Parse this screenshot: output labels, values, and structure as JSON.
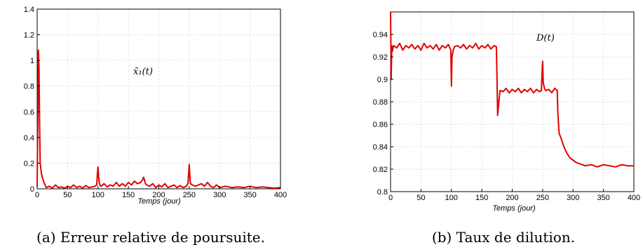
{
  "chart_data": [
    {
      "type": "line",
      "panel": "(a)",
      "caption": "(a) Erreur relative de poursuite.",
      "annotation": "x̃₁(t)",
      "xlabel": "Temps (jour)",
      "ylabel": "",
      "xlim": [
        0,
        400
      ],
      "ylim": [
        0,
        1.4
      ],
      "xticks": [
        "0",
        "50",
        "100",
        "150",
        "200",
        "250",
        "300",
        "350",
        "400"
      ],
      "yticks": [
        "0",
        "0.2",
        "0.4",
        "0.6",
        "0.8",
        "1",
        "1.2",
        "1.4"
      ],
      "grid": true,
      "series_color": "#e00000",
      "series": [
        {
          "x": [
            0,
            1,
            2,
            3,
            4,
            5,
            7,
            9,
            12,
            15,
            20,
            25,
            30,
            35,
            40,
            45,
            50,
            55,
            60,
            65,
            70,
            75,
            80,
            85,
            90,
            95,
            98,
            99,
            100,
            101,
            102,
            103,
            105,
            110,
            115,
            120,
            125,
            130,
            135,
            140,
            145,
            150,
            155,
            160,
            165,
            170,
            173,
            175,
            177,
            178,
            180,
            185,
            190,
            195,
            200,
            205,
            210,
            215,
            220,
            225,
            230,
            235,
            240,
            245,
            248,
            249,
            250,
            251,
            252,
            255,
            260,
            265,
            270,
            275,
            280,
            285,
            290,
            295,
            300,
            310,
            320,
            330,
            340,
            350,
            360,
            370,
            380,
            390,
            400
          ],
          "y": [
            0.02,
            0.5,
            1.08,
            0.95,
            0.5,
            0.2,
            0.12,
            0.08,
            0.04,
            0.01,
            0.02,
            0.005,
            0.03,
            0.01,
            0.015,
            0.005,
            0.02,
            0.01,
            0.03,
            0.01,
            0.02,
            0.005,
            0.025,
            0.01,
            0.015,
            0.02,
            0.03,
            0.12,
            0.17,
            0.1,
            0.05,
            0.03,
            0.02,
            0.04,
            0.015,
            0.03,
            0.02,
            0.05,
            0.02,
            0.04,
            0.02,
            0.05,
            0.03,
            0.06,
            0.04,
            0.05,
            0.07,
            0.09,
            0.06,
            0.04,
            0.03,
            0.02,
            0.04,
            0.01,
            0.03,
            0.015,
            0.04,
            0.01,
            0.02,
            0.03,
            0.01,
            0.025,
            0.01,
            0.02,
            0.04,
            0.12,
            0.19,
            0.1,
            0.04,
            0.03,
            0.02,
            0.03,
            0.04,
            0.02,
            0.05,
            0.02,
            0.01,
            0.03,
            0.01,
            0.02,
            0.01,
            0.015,
            0.01,
            0.02,
            0.01,
            0.015,
            0.01,
            0.005,
            0.01
          ]
        }
      ]
    },
    {
      "type": "line",
      "panel": "(b)",
      "caption": "(b) Taux de dilution.",
      "annotation": "D(t)",
      "xlabel": "Temps (jour)",
      "ylabel": "",
      "xlim": [
        0,
        400
      ],
      "ylim": [
        0.8,
        0.96
      ],
      "xticks": [
        "0",
        "50",
        "100",
        "150",
        "200",
        "250",
        "300",
        "350",
        "400"
      ],
      "yticks": [
        "0.8",
        "0.82",
        "0.84",
        "0.86",
        "0.88",
        "0.9",
        "0.92",
        "0.94"
      ],
      "grid": true,
      "series_color": "#e00000",
      "series": [
        {
          "x": [
            0,
            1,
            2,
            3,
            5,
            10,
            15,
            20,
            25,
            30,
            35,
            40,
            45,
            50,
            55,
            60,
            65,
            70,
            75,
            80,
            85,
            90,
            95,
            99,
            100,
            101,
            103,
            105,
            110,
            115,
            120,
            125,
            130,
            135,
            140,
            145,
            150,
            155,
            160,
            165,
            170,
            174,
            175,
            176,
            178,
            180,
            185,
            190,
            195,
            200,
            205,
            210,
            215,
            220,
            225,
            230,
            235,
            240,
            245,
            248,
            249,
            250,
            251,
            253,
            255,
            260,
            265,
            270,
            274,
            275,
            277,
            280,
            285,
            290,
            295,
            300,
            305,
            310,
            315,
            320,
            330,
            340,
            350,
            360,
            370,
            380,
            390,
            400
          ],
          "y": [
            0.96,
            0.9,
            0.93,
            0.925,
            0.93,
            0.928,
            0.932,
            0.926,
            0.93,
            0.928,
            0.931,
            0.927,
            0.93,
            0.926,
            0.932,
            0.928,
            0.93,
            0.927,
            0.931,
            0.926,
            0.93,
            0.928,
            0.931,
            0.926,
            0.894,
            0.92,
            0.926,
            0.929,
            0.93,
            0.928,
            0.931,
            0.927,
            0.93,
            0.928,
            0.932,
            0.927,
            0.93,
            0.928,
            0.931,
            0.927,
            0.93,
            0.929,
            0.9,
            0.868,
            0.88,
            0.89,
            0.889,
            0.892,
            0.888,
            0.891,
            0.889,
            0.892,
            0.888,
            0.891,
            0.889,
            0.892,
            0.888,
            0.891,
            0.889,
            0.89,
            0.905,
            0.916,
            0.897,
            0.892,
            0.89,
            0.891,
            0.888,
            0.892,
            0.89,
            0.87,
            0.852,
            0.848,
            0.84,
            0.834,
            0.83,
            0.828,
            0.826,
            0.825,
            0.824,
            0.823,
            0.824,
            0.822,
            0.824,
            0.823,
            0.822,
            0.824,
            0.823,
            0.823
          ]
        }
      ]
    }
  ]
}
